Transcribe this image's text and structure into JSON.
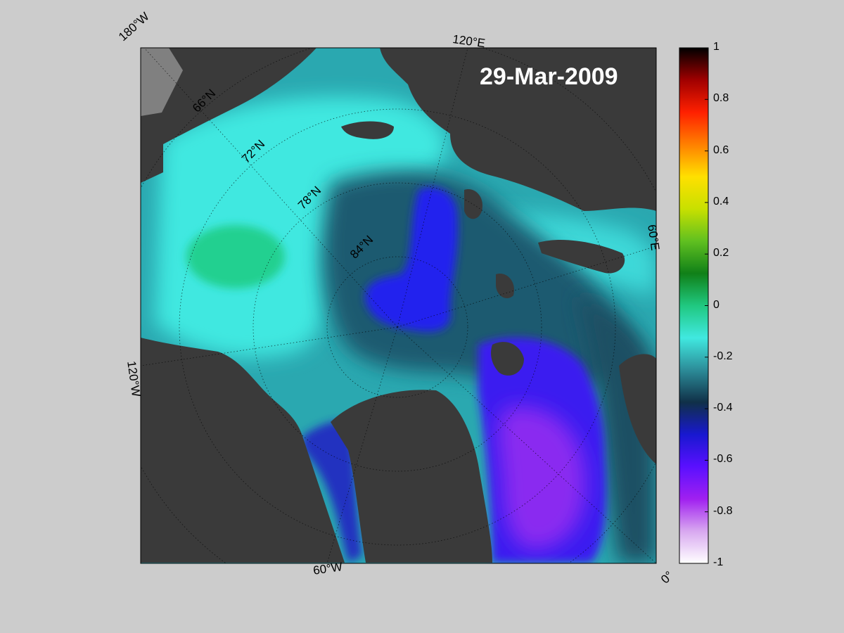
{
  "map": {
    "date": "29-Mar-2009",
    "longitude_labels": [
      "180°W",
      "120°E",
      "60°E",
      "120°W",
      "60°W",
      "0°"
    ],
    "latitude_labels": [
      "66°N",
      "72°N",
      "78°N",
      "84°N"
    ]
  },
  "colorbar": {
    "tick_labels": [
      "1",
      "0.8",
      "0.6",
      "0.4",
      "0.2",
      "0",
      "-0.2",
      "-0.4",
      "-0.6",
      "-0.8",
      "-1"
    ],
    "range": [
      -1,
      1
    ],
    "colors": [
      "#ffffff",
      "#d8a8f0",
      "#a020f0",
      "#5a10ff",
      "#1818d0",
      "#103048",
      "#2c8c98",
      "#40e8e0",
      "#20c880",
      "#108018",
      "#60c020",
      "#c8e000",
      "#ffe000",
      "#ff8000",
      "#ff2000",
      "#a00000",
      "#000000"
    ]
  },
  "palette": {
    "background": "#cccccc",
    "land": "#3a3a3a",
    "land_grey": "#808080",
    "sea_light": "#40e8e0",
    "sea_mid": "#2aa8b0",
    "sea_dark": "#1a5a70",
    "blue": "#2222ee",
    "violet": "#8030f0"
  }
}
